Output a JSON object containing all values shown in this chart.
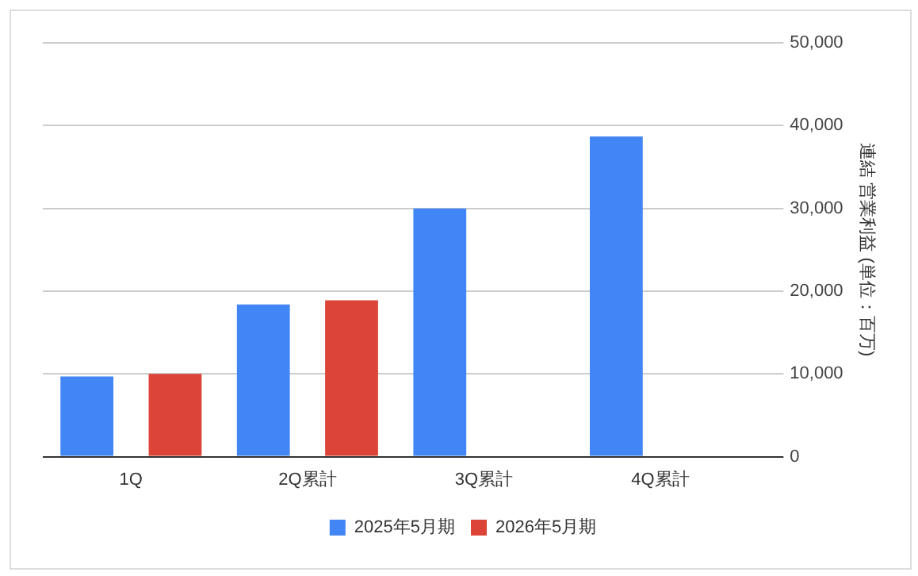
{
  "chart_data": {
    "type": "bar",
    "ylabel": "連結 営業利益 (単位：百万)",
    "categories": [
      "1Q",
      "2Q累計",
      "3Q累計",
      "4Q累計"
    ],
    "series": [
      {
        "name": "2025年5月期",
        "color": "#4285f4",
        "values": [
          9700,
          18400,
          30000,
          38700
        ]
      },
      {
        "name": "2026年5月期",
        "color": "#db4437",
        "values": [
          10000,
          18900,
          null,
          null
        ]
      }
    ],
    "ylim": [
      0,
      50000
    ],
    "yticks": [
      {
        "value": 0,
        "label": "0"
      },
      {
        "value": 10000,
        "label": "10,000"
      },
      {
        "value": 20000,
        "label": "20,000"
      },
      {
        "value": 30000,
        "label": "30,000"
      },
      {
        "value": 40000,
        "label": "40,000"
      },
      {
        "value": 50000,
        "label": "50,000"
      }
    ],
    "grid": "y",
    "legend": "bottom"
  }
}
